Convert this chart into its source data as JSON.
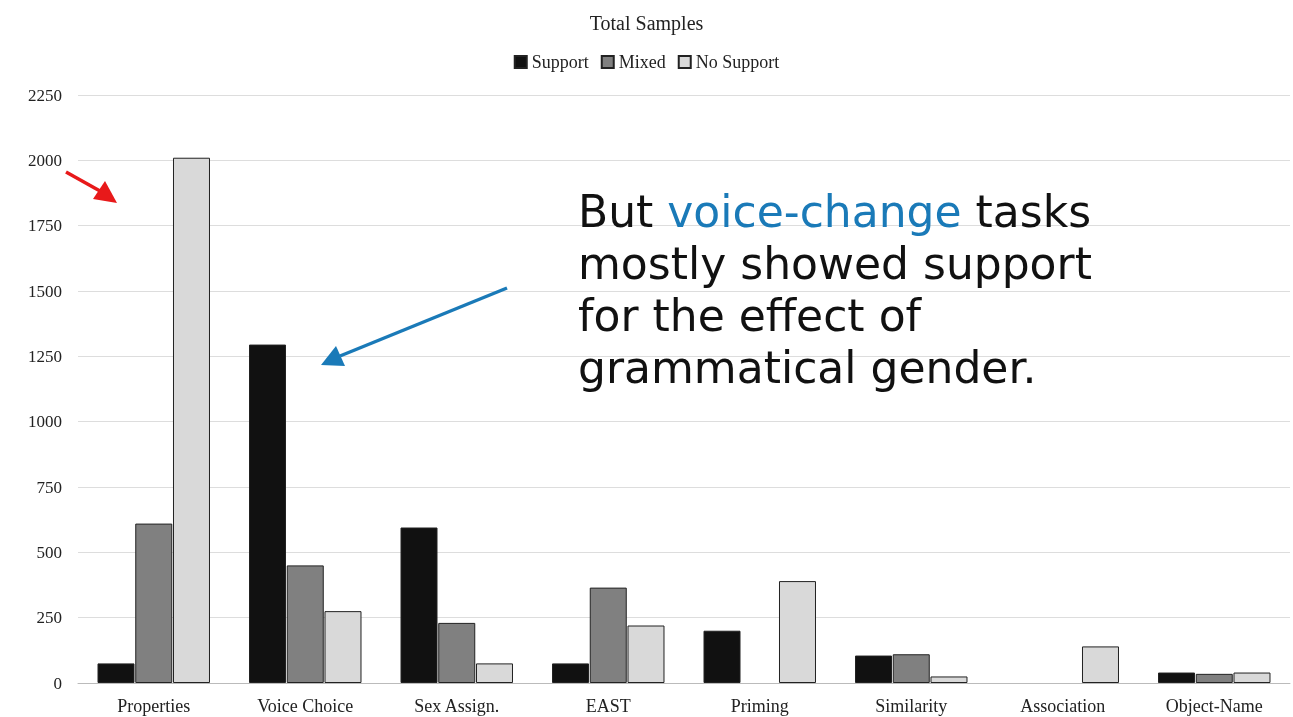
{
  "chart_data": {
    "type": "bar",
    "title": "Total Samples",
    "categories": [
      "Properties",
      "Voice Choice",
      "Sex Assign.",
      "EAST",
      "Priming",
      "Similarity",
      "Association",
      "Object-Name"
    ],
    "series": [
      {
        "name": "Support",
        "color": "#111111",
        "values": [
          75,
          1295,
          595,
          75,
          200,
          105,
          0,
          40
        ]
      },
      {
        "name": "Mixed",
        "color": "#808080",
        "values": [
          610,
          450,
          230,
          365,
          0,
          110,
          0,
          35
        ]
      },
      {
        "name": "No Support",
        "color": "#d9d9d9",
        "values": [
          2010,
          275,
          75,
          220,
          390,
          25,
          140,
          40
        ]
      }
    ],
    "ylim": [
      0,
      2250
    ],
    "yticks": [
      0,
      250,
      500,
      750,
      1000,
      1250,
      1500,
      1750,
      2000,
      2250
    ],
    "grid": "y",
    "legend": "top",
    "annotations": [
      "But voice-change tasks mostly showed support for the effect of grammatical gender."
    ]
  }
}
